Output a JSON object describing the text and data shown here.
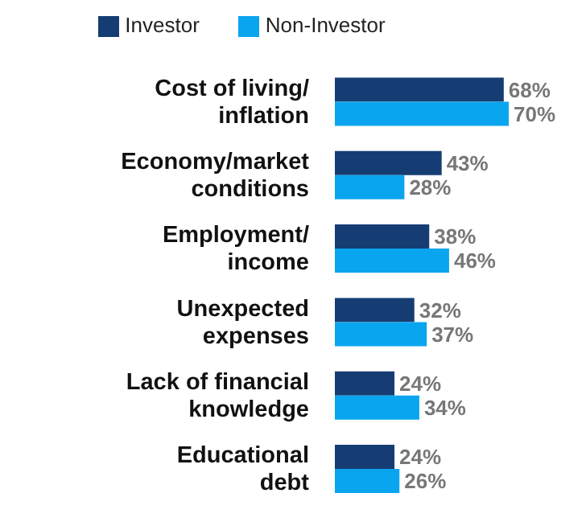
{
  "chart_data": {
    "type": "bar",
    "orientation": "horizontal",
    "categories": [
      "Cost of living/\ninflation",
      "Economy/market\nconditions",
      "Employment/\nincome",
      "Unexpected\nexpenses",
      "Lack of financial\nknowledge",
      "Educational\ndebt"
    ],
    "series": [
      {
        "name": "Investor",
        "color": "#163d73",
        "values": [
          68,
          43,
          38,
          32,
          24,
          24
        ],
        "value_labels": [
          "68%",
          "43%",
          "38%",
          "32%",
          "24%",
          "24%"
        ]
      },
      {
        "name": "Non-Investor",
        "color": "#0aa5ef",
        "values": [
          70,
          28,
          46,
          37,
          34,
          26
        ],
        "value_labels": [
          "70%",
          "28%",
          "46%",
          "37%",
          "34%",
          "26%"
        ]
      }
    ],
    "legend": "top"
  }
}
